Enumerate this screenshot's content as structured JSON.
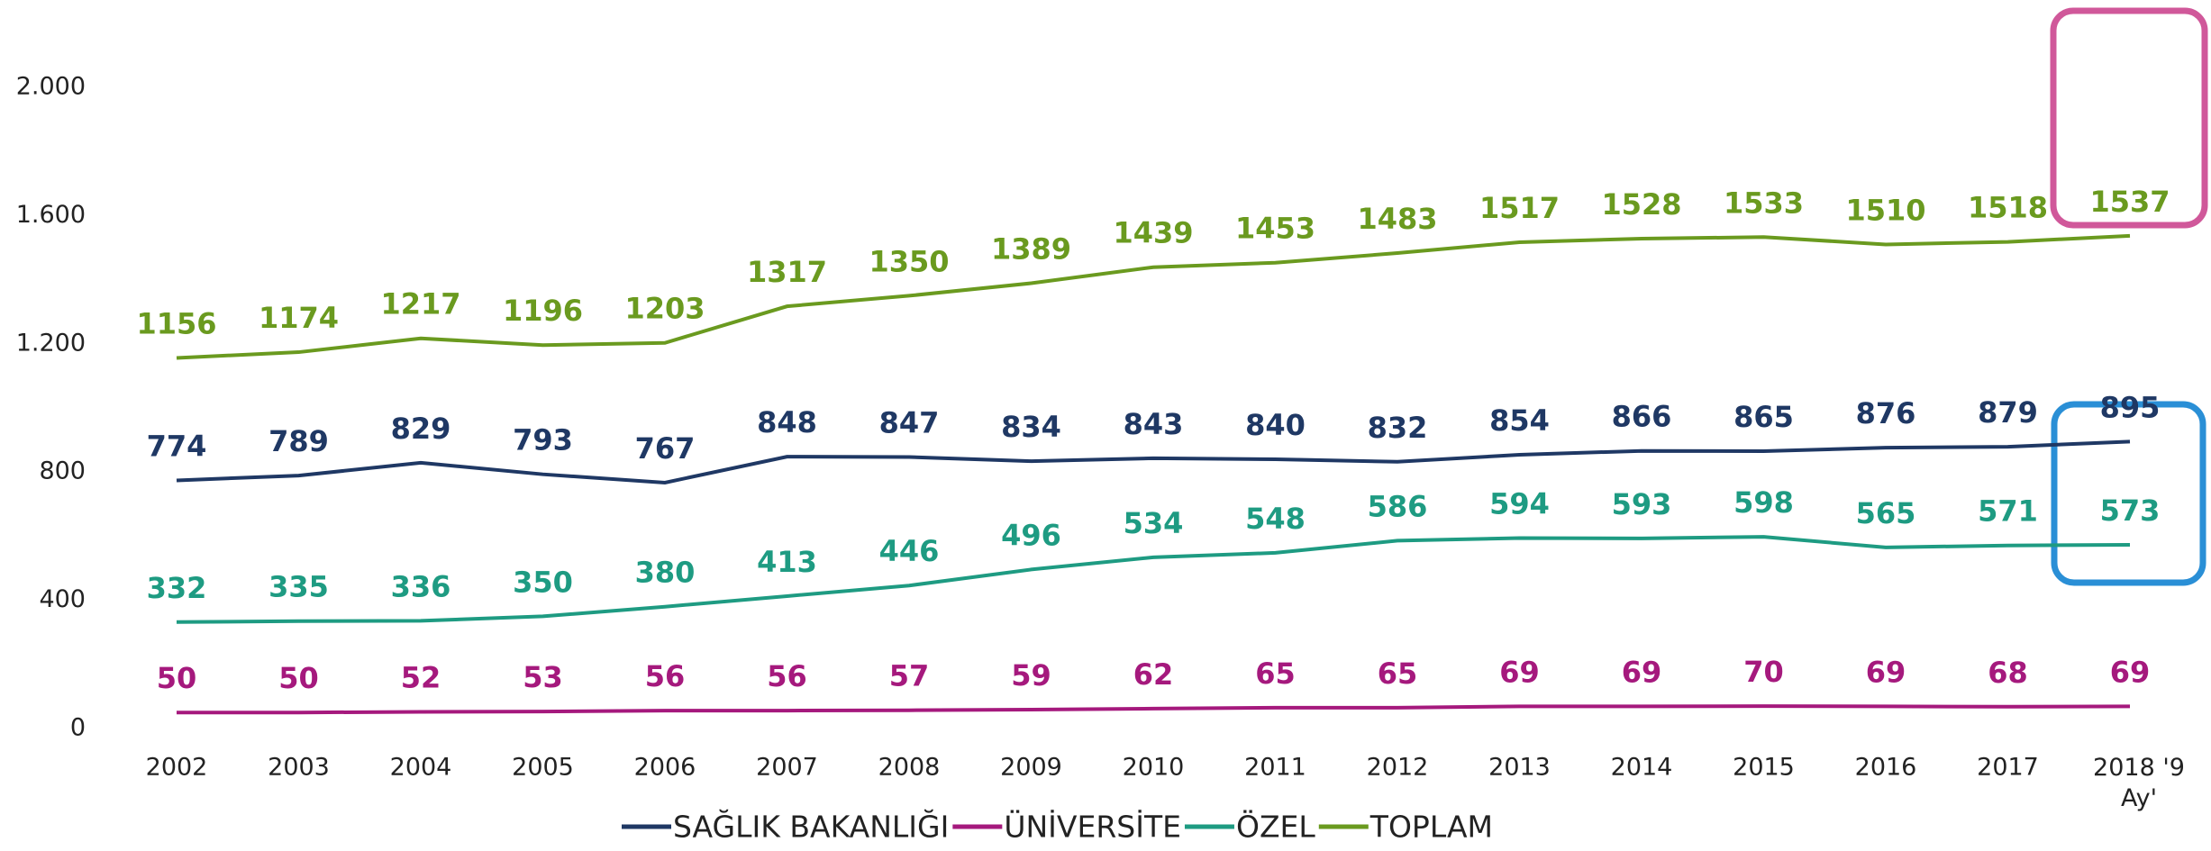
{
  "chart_data": {
    "type": "line",
    "categories": [
      "2002",
      "2003",
      "2004",
      "2005",
      "2006",
      "2007",
      "2008",
      "2009",
      "2010",
      "2011",
      "2012",
      "2013",
      "2014",
      "2015",
      "2016",
      "2017",
      "2018 '9 Ay'"
    ],
    "series": [
      {
        "name": "SAĞLIK BAKANLIĞI",
        "color": "#1f3864",
        "values": [
          774,
          789,
          829,
          793,
          767,
          848,
          847,
          834,
          843,
          840,
          832,
          854,
          866,
          865,
          876,
          879,
          895
        ]
      },
      {
        "name": "ÜNİVERSİTE",
        "color": "#a5197d",
        "values": [
          50,
          50,
          52,
          53,
          56,
          56,
          57,
          59,
          62,
          65,
          65,
          69,
          69,
          70,
          69,
          68,
          69
        ]
      },
      {
        "name": "ÖZEL",
        "color": "#1e9b82",
        "values": [
          332,
          335,
          336,
          350,
          380,
          413,
          446,
          496,
          534,
          548,
          586,
          594,
          593,
          598,
          565,
          571,
          573
        ]
      },
      {
        "name": "TOPLAM",
        "color": "#6a9a1f",
        "values": [
          1156,
          1174,
          1217,
          1196,
          1203,
          1317,
          1350,
          1389,
          1439,
          1453,
          1483,
          1517,
          1528,
          1533,
          1510,
          1518,
          1537
        ]
      }
    ],
    "ylim": [
      0,
      2000
    ],
    "yticks": [
      0,
      400,
      800,
      {
        "value": 1200,
        "label": "1.200"
      },
      {
        "value": 1600,
        "label": "1.600"
      },
      {
        "value": 2000,
        "label": "2.000"
      }
    ],
    "grid": false,
    "legend": "bottom"
  }
}
